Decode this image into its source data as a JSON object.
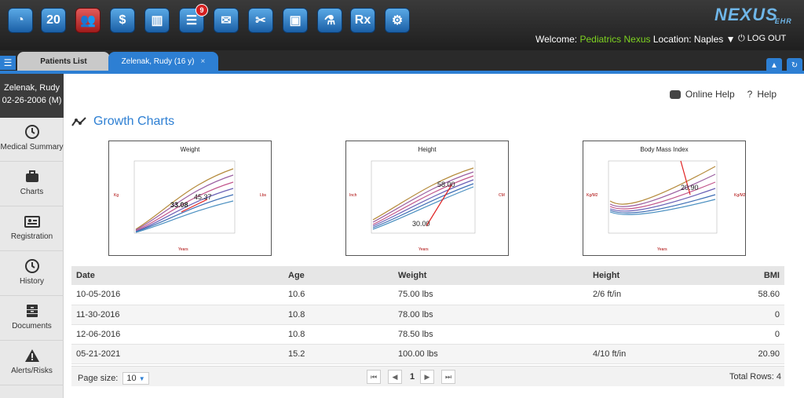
{
  "header": {
    "logo_text": "NEXUS",
    "logo_sub": "EHR",
    "welcome_label": "Welcome:",
    "welcome_name": "Pediatrics Nexus",
    "location_label": "Location: Naples",
    "logout_label": "LOG OUT",
    "calendar_day": "20",
    "notification_count": "9",
    "rx_label": "Rx",
    "colors": {
      "accent": "#2d7fd3",
      "welcome_name": "#7ed321",
      "badge": "#d62020"
    }
  },
  "tabs": {
    "patients_list": "Patients List",
    "active_patient": "Zelenak, Rudy (16 y)",
    "close_glyph": "×"
  },
  "sidebar": {
    "patient_name": "Zelenak, Rudy",
    "patient_dob": "02-26-2006 (M)",
    "items": [
      {
        "label": "Medical Summary",
        "icon": "clock-icon"
      },
      {
        "label": "Charts",
        "icon": "briefcase-icon"
      },
      {
        "label": "Registration",
        "icon": "id-card-icon"
      },
      {
        "label": "History",
        "icon": "clock-icon"
      },
      {
        "label": "Documents",
        "icon": "cabinet-icon"
      },
      {
        "label": "Alerts/Risks",
        "icon": "warning-icon"
      }
    ]
  },
  "main": {
    "online_help": "Online Help",
    "help": "Help",
    "title": "Growth Charts"
  },
  "charts": [
    {
      "title": "Weight",
      "marker_labels": [
        "33.08",
        "45.37"
      ],
      "y_unit_left": "Kg",
      "y_unit_right": "Lbs",
      "x_label": "Years"
    },
    {
      "title": "Height",
      "marker_labels": [
        "58.00",
        "30.00"
      ],
      "y_unit_left": "Inch",
      "y_unit_right": "CM",
      "x_label": "Years"
    },
    {
      "title": "Body Mass Index",
      "marker_labels": [
        "20.90"
      ],
      "y_unit_left": "Kg/M2",
      "y_unit_right": "Kg/M2",
      "x_label": "Years"
    }
  ],
  "table": {
    "headers": {
      "date": "Date",
      "age": "Age",
      "weight": "Weight",
      "height": "Height",
      "bmi": "BMI"
    },
    "rows": [
      {
        "date": "10-05-2016",
        "age": "10.6",
        "weight": "75.00 lbs",
        "height": "2/6 ft/in",
        "bmi": "58.60"
      },
      {
        "date": "11-30-2016",
        "age": "10.8",
        "weight": "78.00 lbs",
        "height": "",
        "bmi": "0"
      },
      {
        "date": "12-06-2016",
        "age": "10.8",
        "weight": "78.50 lbs",
        "height": "",
        "bmi": "0"
      },
      {
        "date": "05-21-2021",
        "age": "15.2",
        "weight": "100.00 lbs",
        "height": "4/10 ft/in",
        "bmi": "20.90"
      }
    ]
  },
  "pager": {
    "page_size_label": "Page size:",
    "page_size_value": "10",
    "current_page": "1",
    "total_rows": "Total Rows: 4"
  }
}
